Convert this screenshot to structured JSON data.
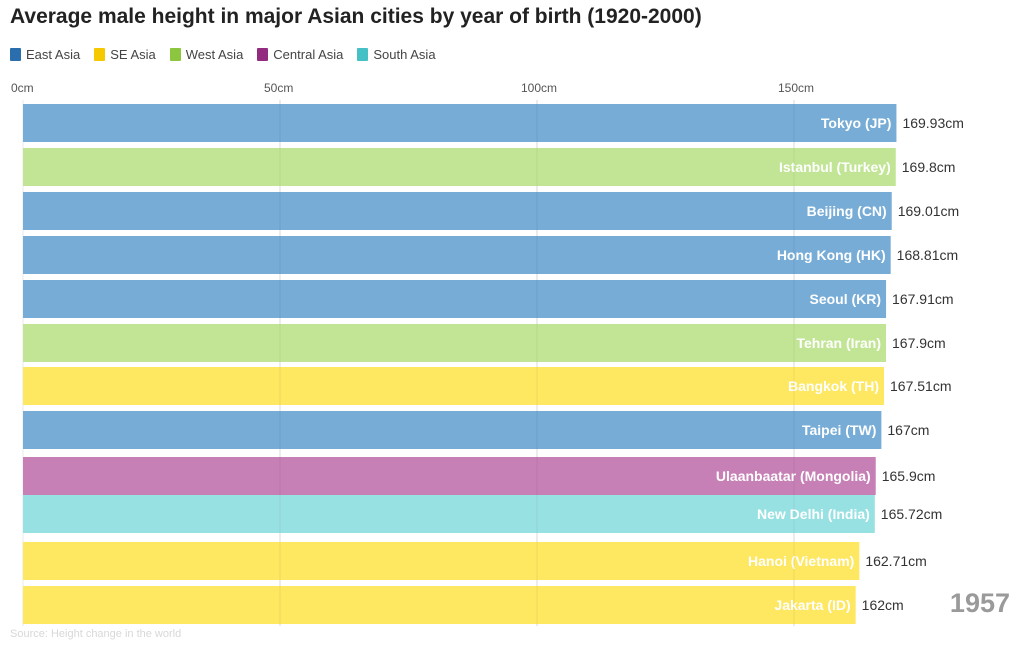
{
  "title": "Average male height in major Asian cities by year of birth (1920-2000)",
  "legend": [
    {
      "label": "East Asia",
      "color": "#2a6ead"
    },
    {
      "label": "SE Asia",
      "color": "#f5c800"
    },
    {
      "label": "West Asia",
      "color": "#8cc63e"
    },
    {
      "label": "Central Asia",
      "color": "#932c80"
    },
    {
      "label": "South Asia",
      "color": "#45c1c6"
    }
  ],
  "year": "1957",
  "source": "Source: Height change in the world",
  "chart_data": {
    "type": "bar",
    "orientation": "horizontal",
    "title": "Average male height in major Asian cities by year of birth (1920-2000)",
    "xlim": [
      0,
      170
    ],
    "x_ticks": [
      {
        "value": 0,
        "label": "0cm"
      },
      {
        "value": 50,
        "label": "50cm"
      },
      {
        "value": 100,
        "label": "100cm"
      },
      {
        "value": 150,
        "label": "150cm"
      }
    ],
    "grid": true,
    "legend_position": "top-left",
    "bars": [
      {
        "category": "Tokyo (JP)",
        "value": 169.93,
        "value_label": "169.93cm",
        "region": "East Asia",
        "color": "#76acd6"
      },
      {
        "category": "Istanbul (Turkey)",
        "value": 169.8,
        "value_label": "169.8cm",
        "region": "West Asia",
        "color": "#c1e595"
      },
      {
        "category": "Beijing (CN)",
        "value": 169.01,
        "value_label": "169.01cm",
        "region": "East Asia",
        "color": "#76acd6"
      },
      {
        "category": "Hong Kong (HK)",
        "value": 168.81,
        "value_label": "168.81cm",
        "region": "East Asia",
        "color": "#76acd6"
      },
      {
        "category": "Seoul (KR)",
        "value": 167.91,
        "value_label": "167.91cm",
        "region": "East Asia",
        "color": "#76acd6"
      },
      {
        "category": "Tehran (Iran)",
        "value": 167.9,
        "value_label": "167.9cm",
        "region": "West Asia",
        "color": "#c1e595"
      },
      {
        "category": "Bangkok (TH)",
        "value": 167.51,
        "value_label": "167.51cm",
        "region": "SE Asia",
        "color": "#fee761"
      },
      {
        "category": "Taipei (TW)",
        "value": 167,
        "value_label": "167cm",
        "region": "East Asia",
        "color": "#76acd6"
      },
      {
        "category": "Ulaanbaatar (Mongolia)",
        "value": 165.9,
        "value_label": "165.9cm",
        "region": "Central Asia",
        "color": "#c680b5"
      },
      {
        "category": "New Delhi (India)",
        "value": 165.72,
        "value_label": "165.72cm",
        "region": "South Asia",
        "color": "#98e1e3"
      },
      {
        "category": "Hanoi (Vietnam)",
        "value": 162.71,
        "value_label": "162.71cm",
        "region": "SE Asia",
        "color": "#fee761"
      },
      {
        "category": "Jakarta (ID)",
        "value": 162,
        "value_label": "162cm",
        "region": "SE Asia",
        "color": "#fee761"
      }
    ]
  }
}
